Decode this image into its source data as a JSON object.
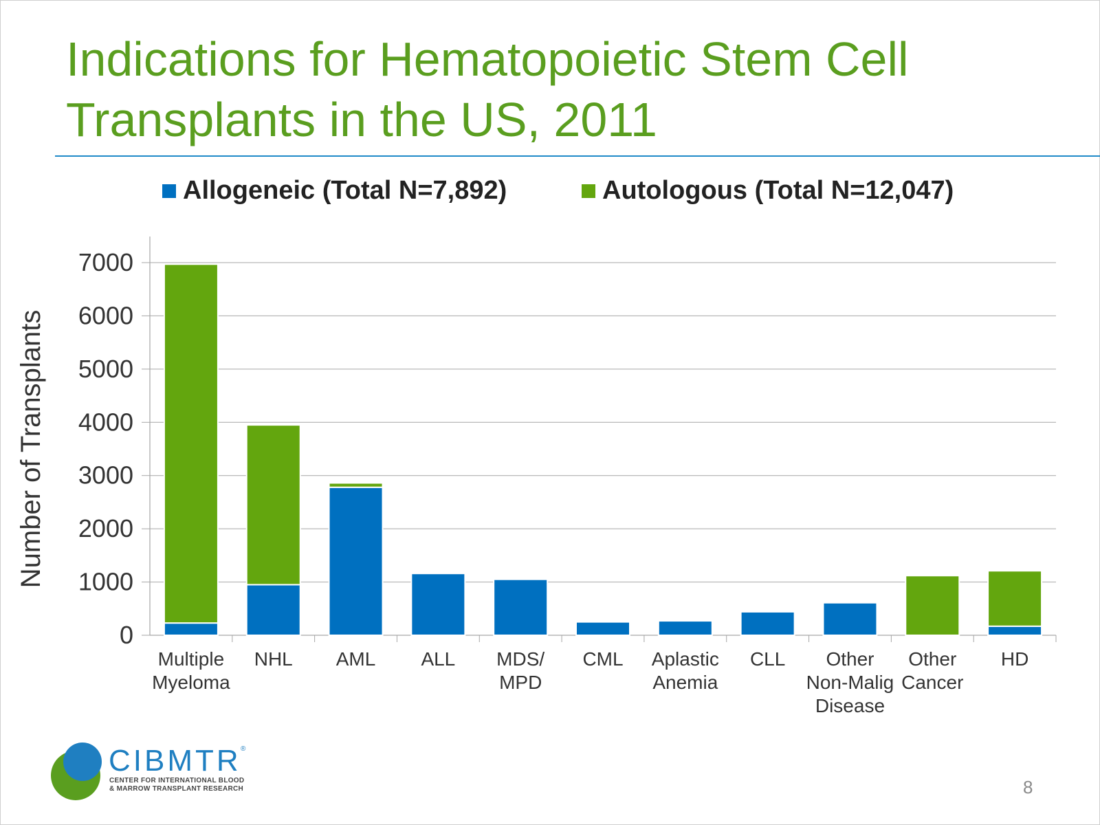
{
  "slide": {
    "title_line1": "Indications for Hematopoietic Stem Cell",
    "title_line2": "Transplants in the US, 2011",
    "page_number": "8"
  },
  "logo": {
    "name": "CIBMTR",
    "registered": "®",
    "subtitle_line1": "CENTER FOR INTERNATIONAL BLOOD",
    "subtitle_line2": "& MARROW TRANSPLANT RESEARCH"
  },
  "colors": {
    "title": "#5a9e1f",
    "allogeneic": "#0070c0",
    "autologous": "#63a60e",
    "rule": "#1f8ac9"
  },
  "chart_data": {
    "type": "bar",
    "stacked": true,
    "title": "",
    "xlabel": "",
    "ylabel": "Number of  Transplants",
    "ylim": [
      0,
      7000
    ],
    "yticks": [
      0,
      1000,
      2000,
      3000,
      4000,
      5000,
      6000,
      7000
    ],
    "grid": true,
    "legend_position": "top",
    "categories": [
      [
        "Multiple",
        "Myeloma"
      ],
      [
        "NHL"
      ],
      [
        "AML"
      ],
      [
        "ALL"
      ],
      [
        "MDS/",
        "MPD"
      ],
      [
        "CML"
      ],
      [
        "Aplastic",
        "Anemia"
      ],
      [
        "CLL"
      ],
      [
        "Other",
        "Non-Malig",
        "Disease"
      ],
      [
        "Other",
        "Cancer"
      ],
      [
        "HD"
      ]
    ],
    "series": [
      {
        "name": "Allogeneic (Total N=7,892)",
        "color": "#0070c0",
        "values": [
          230,
          950,
          2780,
          1160,
          1050,
          250,
          270,
          440,
          610,
          0,
          170
        ]
      },
      {
        "name": "Autologous (Total N=12,047)",
        "color": "#63a60e",
        "values": [
          6740,
          3000,
          80,
          0,
          0,
          0,
          0,
          0,
          0,
          1120,
          1040
        ]
      }
    ]
  }
}
